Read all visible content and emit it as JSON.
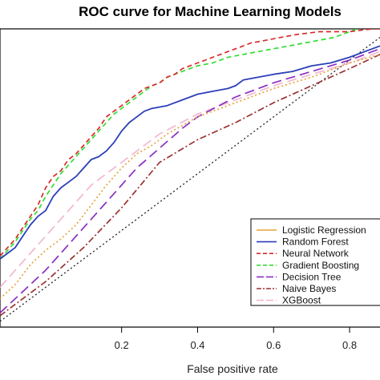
{
  "chart_data": {
    "type": "line",
    "title": "ROC curve for Machine Learning Models",
    "xlabel": "False positive rate",
    "ylabel": "",
    "xlim": [
      -0.12,
      0.88
    ],
    "ylim": [
      0.0,
      1.05
    ],
    "x_ticks": [
      0.2,
      0.4,
      0.6,
      0.8
    ],
    "x_tick_labels": [
      "0.2",
      "0.4",
      "0.6",
      "0.8"
    ],
    "legend_position": "bottom-right",
    "grid": false,
    "series": [
      {
        "name": "Logistic Regression",
        "color": "#e8a33c",
        "dash": "dotted",
        "points": [
          [
            -0.12,
            0.1
          ],
          [
            -0.08,
            0.15
          ],
          [
            -0.04,
            0.22
          ],
          [
            0.0,
            0.27
          ],
          [
            0.04,
            0.31
          ],
          [
            0.08,
            0.36
          ],
          [
            0.12,
            0.43
          ],
          [
            0.16,
            0.5
          ],
          [
            0.2,
            0.56
          ],
          [
            0.24,
            0.61
          ],
          [
            0.28,
            0.64
          ],
          [
            0.32,
            0.68
          ],
          [
            0.36,
            0.71
          ],
          [
            0.4,
            0.74
          ],
          [
            0.5,
            0.79
          ],
          [
            0.6,
            0.84
          ],
          [
            0.7,
            0.88
          ],
          [
            0.8,
            0.93
          ],
          [
            0.88,
            0.96
          ]
        ]
      },
      {
        "name": "Random Forest",
        "color": "#2c3fb8",
        "dash": "solid",
        "points": [
          [
            -0.12,
            0.24
          ],
          [
            -0.1,
            0.26
          ],
          [
            -0.08,
            0.28
          ],
          [
            -0.06,
            0.32
          ],
          [
            -0.04,
            0.36
          ],
          [
            -0.02,
            0.39
          ],
          [
            0.0,
            0.41
          ],
          [
            0.02,
            0.46
          ],
          [
            0.04,
            0.49
          ],
          [
            0.06,
            0.51
          ],
          [
            0.08,
            0.53
          ],
          [
            0.1,
            0.56
          ],
          [
            0.12,
            0.59
          ],
          [
            0.14,
            0.6
          ],
          [
            0.16,
            0.62
          ],
          [
            0.18,
            0.65
          ],
          [
            0.2,
            0.69
          ],
          [
            0.22,
            0.72
          ],
          [
            0.24,
            0.74
          ],
          [
            0.26,
            0.76
          ],
          [
            0.28,
            0.77
          ],
          [
            0.32,
            0.78
          ],
          [
            0.36,
            0.8
          ],
          [
            0.4,
            0.82
          ],
          [
            0.44,
            0.83
          ],
          [
            0.48,
            0.84
          ],
          [
            0.5,
            0.85
          ],
          [
            0.52,
            0.87
          ],
          [
            0.56,
            0.88
          ],
          [
            0.6,
            0.89
          ],
          [
            0.65,
            0.9
          ],
          [
            0.7,
            0.92
          ],
          [
            0.75,
            0.93
          ],
          [
            0.8,
            0.95
          ],
          [
            0.86,
            0.98
          ],
          [
            0.88,
            0.99
          ]
        ]
      },
      {
        "name": "Neural Network",
        "color": "#d92b2b",
        "dash": "dashed",
        "points": [
          [
            -0.12,
            0.25
          ],
          [
            -0.1,
            0.28
          ],
          [
            -0.08,
            0.31
          ],
          [
            -0.06,
            0.35
          ],
          [
            -0.04,
            0.39
          ],
          [
            -0.02,
            0.43
          ],
          [
            0.0,
            0.49
          ],
          [
            0.02,
            0.53
          ],
          [
            0.04,
            0.55
          ],
          [
            0.06,
            0.59
          ],
          [
            0.08,
            0.61
          ],
          [
            0.1,
            0.64
          ],
          [
            0.12,
            0.67
          ],
          [
            0.14,
            0.7
          ],
          [
            0.16,
            0.74
          ],
          [
            0.18,
            0.76
          ],
          [
            0.2,
            0.78
          ],
          [
            0.22,
            0.8
          ],
          [
            0.24,
            0.82
          ],
          [
            0.26,
            0.84
          ],
          [
            0.28,
            0.85
          ],
          [
            0.3,
            0.86
          ],
          [
            0.32,
            0.88
          ],
          [
            0.34,
            0.89
          ],
          [
            0.36,
            0.91
          ],
          [
            0.38,
            0.92
          ],
          [
            0.4,
            0.93
          ],
          [
            0.42,
            0.94
          ],
          [
            0.44,
            0.95
          ],
          [
            0.46,
            0.96
          ],
          [
            0.48,
            0.97
          ],
          [
            0.5,
            0.98
          ],
          [
            0.52,
            0.99
          ],
          [
            0.54,
            1.0
          ],
          [
            0.58,
            1.01
          ],
          [
            0.62,
            1.02
          ],
          [
            0.66,
            1.03
          ],
          [
            0.72,
            1.04
          ],
          [
            0.8,
            1.04
          ],
          [
            0.86,
            1.05
          ],
          [
            0.88,
            1.05
          ]
        ]
      },
      {
        "name": "Gradient Boosting",
        "color": "#33dd33",
        "dash": "dashed",
        "points": [
          [
            -0.12,
            0.24
          ],
          [
            -0.1,
            0.27
          ],
          [
            -0.08,
            0.3
          ],
          [
            -0.06,
            0.34
          ],
          [
            -0.04,
            0.38
          ],
          [
            -0.02,
            0.41
          ],
          [
            0.0,
            0.46
          ],
          [
            0.02,
            0.5
          ],
          [
            0.04,
            0.54
          ],
          [
            0.06,
            0.57
          ],
          [
            0.08,
            0.6
          ],
          [
            0.1,
            0.63
          ],
          [
            0.12,
            0.66
          ],
          [
            0.14,
            0.69
          ],
          [
            0.16,
            0.72
          ],
          [
            0.18,
            0.75
          ],
          [
            0.2,
            0.77
          ],
          [
            0.22,
            0.79
          ],
          [
            0.24,
            0.81
          ],
          [
            0.26,
            0.83
          ],
          [
            0.28,
            0.85
          ],
          [
            0.3,
            0.86
          ],
          [
            0.32,
            0.88
          ],
          [
            0.34,
            0.89
          ],
          [
            0.36,
            0.9
          ],
          [
            0.38,
            0.91
          ],
          [
            0.4,
            0.92
          ],
          [
            0.44,
            0.93
          ],
          [
            0.48,
            0.95
          ],
          [
            0.52,
            0.96
          ],
          [
            0.56,
            0.97
          ],
          [
            0.6,
            0.98
          ],
          [
            0.64,
            0.99
          ],
          [
            0.68,
            1.0
          ],
          [
            0.72,
            1.01
          ],
          [
            0.76,
            1.02
          ],
          [
            0.8,
            1.04
          ],
          [
            0.84,
            1.06
          ],
          [
            0.88,
            1.07
          ]
        ]
      },
      {
        "name": "Decision Tree",
        "color": "#8a2ec4",
        "dash": "longdash",
        "points": [
          [
            -0.12,
            0.05
          ],
          [
            0.0,
            0.2
          ],
          [
            0.12,
            0.38
          ],
          [
            0.24,
            0.56
          ],
          [
            0.36,
            0.7
          ],
          [
            0.4,
            0.74
          ],
          [
            0.5,
            0.81
          ],
          [
            0.6,
            0.86
          ],
          [
            0.7,
            0.9
          ],
          [
            0.8,
            0.94
          ],
          [
            0.88,
            0.98
          ]
        ]
      },
      {
        "name": "Naive Bayes",
        "color": "#9a3333",
        "dash": "dashdot",
        "points": [
          [
            -0.12,
            0.04
          ],
          [
            0.0,
            0.16
          ],
          [
            0.1,
            0.28
          ],
          [
            0.2,
            0.42
          ],
          [
            0.3,
            0.58
          ],
          [
            0.4,
            0.66
          ],
          [
            0.5,
            0.72
          ],
          [
            0.6,
            0.79
          ],
          [
            0.7,
            0.85
          ],
          [
            0.8,
            0.91
          ],
          [
            0.88,
            0.96
          ]
        ]
      },
      {
        "name": "XGBoost",
        "color": "#f2b8d0",
        "dash": "longdash",
        "points": [
          [
            -0.12,
            0.14
          ],
          [
            0.0,
            0.32
          ],
          [
            0.12,
            0.5
          ],
          [
            0.2,
            0.58
          ],
          [
            0.3,
            0.68
          ],
          [
            0.4,
            0.75
          ],
          [
            0.5,
            0.8
          ],
          [
            0.6,
            0.85
          ],
          [
            0.7,
            0.89
          ],
          [
            0.8,
            0.93
          ],
          [
            0.88,
            0.97
          ]
        ]
      }
    ],
    "reference_line": {
      "color": "#222222",
      "dash": "dotted",
      "points": [
        [
          -0.12,
          0.02
        ],
        [
          0.88,
          1.02
        ]
      ]
    }
  }
}
